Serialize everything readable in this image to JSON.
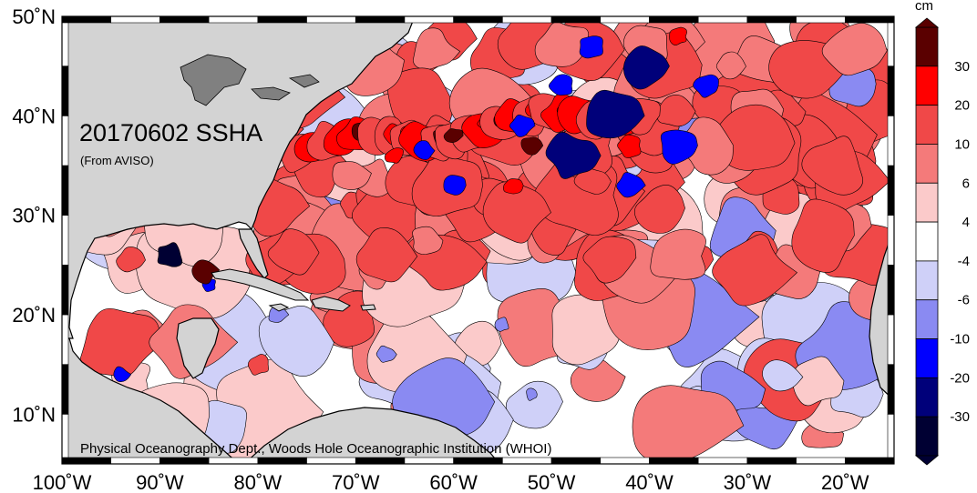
{
  "map": {
    "title": "20170602 SSHA",
    "subtitle": "(From AVISO)",
    "credit": "Physical Oceanography Dept., Woods Hole Oceanographic Institution (WHOI)",
    "extent": {
      "lon": [
        -100,
        -15
      ],
      "lat": [
        5,
        50
      ]
    }
  },
  "axes": {
    "lat_ticks": [
      {
        "value": 50,
        "label": "50˚N"
      },
      {
        "value": 40,
        "label": "40˚N"
      },
      {
        "value": 30,
        "label": "30˚N"
      },
      {
        "value": 20,
        "label": "20˚N"
      },
      {
        "value": 10,
        "label": "10˚N"
      }
    ],
    "lon_ticks": [
      {
        "value": -100,
        "label": "100˚W"
      },
      {
        "value": -90,
        "label": "90˚W"
      },
      {
        "value": -80,
        "label": "80˚W"
      },
      {
        "value": -70,
        "label": "70˚W"
      },
      {
        "value": -60,
        "label": "60˚W"
      },
      {
        "value": -50,
        "label": "50˚W"
      },
      {
        "value": -40,
        "label": "40˚W"
      },
      {
        "value": -30,
        "label": "30˚W"
      },
      {
        "value": -20,
        "label": "20˚W"
      }
    ]
  },
  "colorbar": {
    "unit": "cm",
    "bins": [
      {
        "lo": 30,
        "hi": 40,
        "color": "#5a0000"
      },
      {
        "lo": 20,
        "hi": 30,
        "color": "#ff0000"
      },
      {
        "lo": 10,
        "hi": 20,
        "color": "#f04848"
      },
      {
        "lo": 6,
        "hi": 10,
        "color": "#f47a7a"
      },
      {
        "lo": 4,
        "hi": 6,
        "color": "#fbcaca"
      },
      {
        "lo": -4,
        "hi": 4,
        "color": "#ffffff"
      },
      {
        "lo": -6,
        "hi": -4,
        "color": "#cfd0f8"
      },
      {
        "lo": -10,
        "hi": -6,
        "color": "#8a8af2"
      },
      {
        "lo": -20,
        "hi": -10,
        "color": "#0000ff"
      },
      {
        "lo": -30,
        "hi": -20,
        "color": "#00007a"
      },
      {
        "lo": -40,
        "hi": -30,
        "color": "#000033"
      }
    ],
    "tick_labels": [
      "30",
      "20",
      "10",
      "6",
      "4",
      "-4",
      "-6",
      "-10",
      "-20",
      "-30"
    ]
  },
  "colors": {
    "land": "#d3d3d3",
    "lakes": "#808080",
    "coast": "#000000"
  }
}
